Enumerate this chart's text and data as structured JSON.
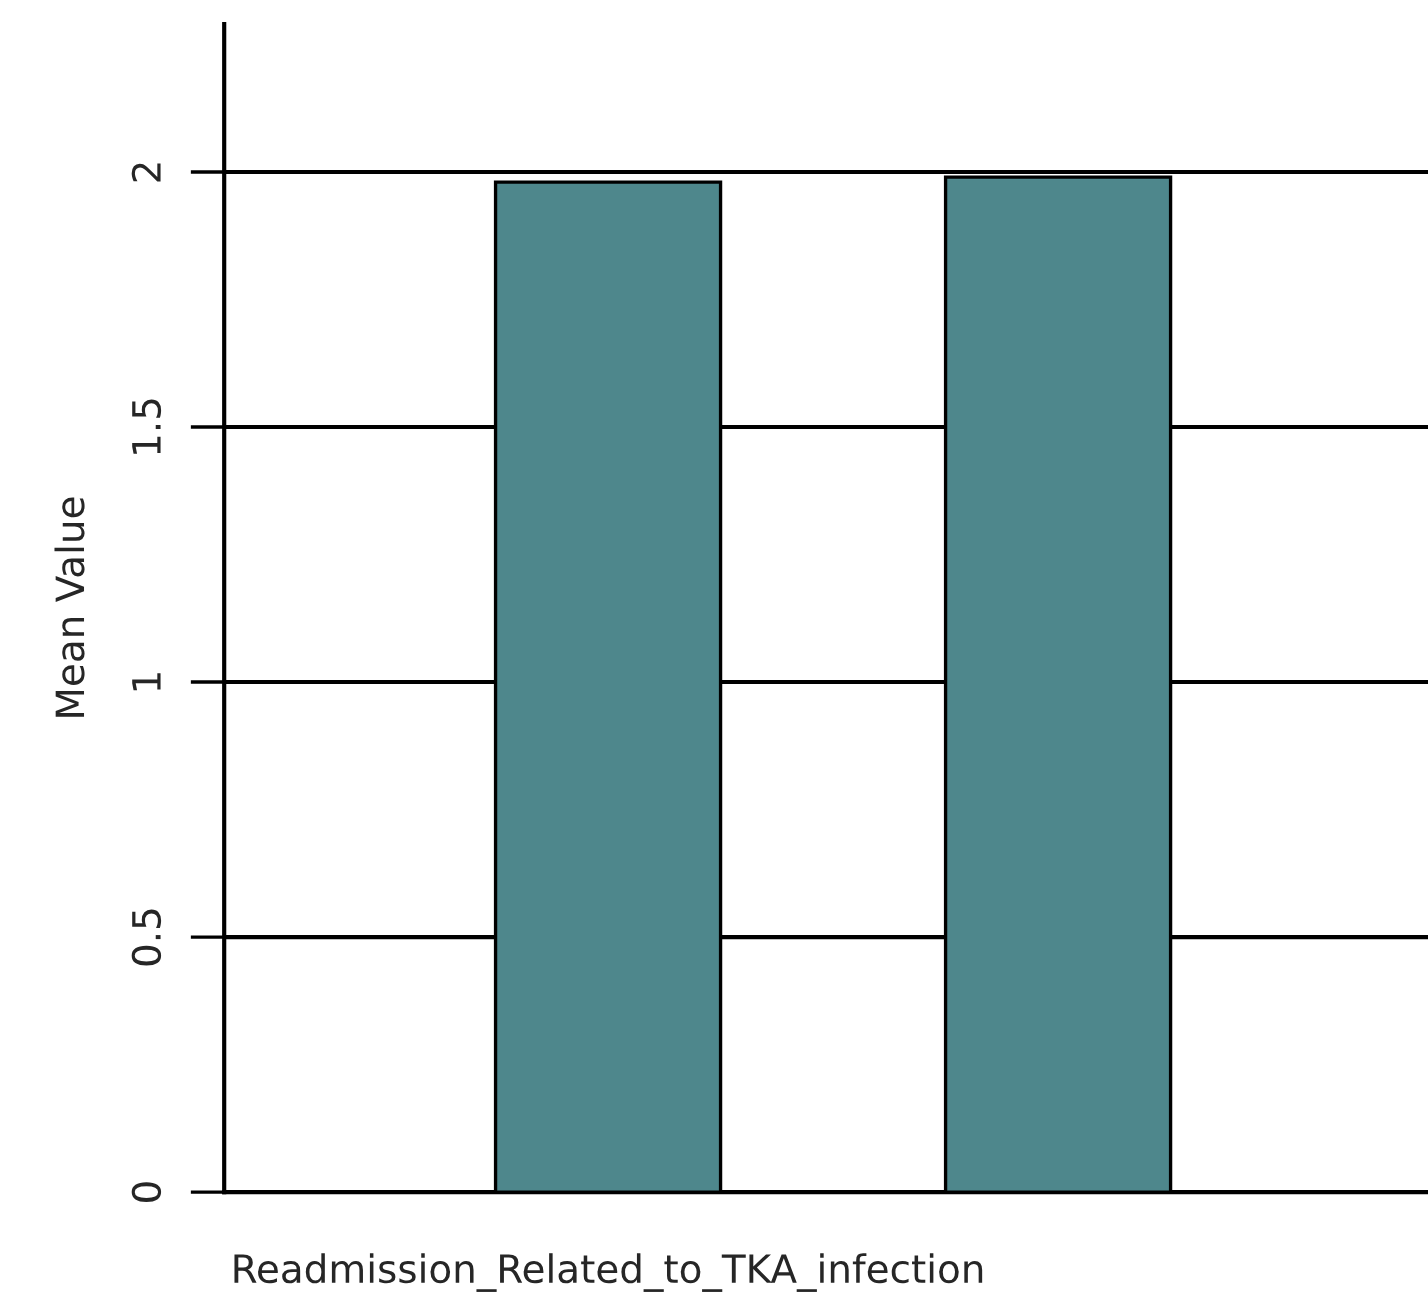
{
  "chart_data": {
    "type": "bar",
    "ylabel": "Mean Value",
    "categories": [
      "Readmission_Related_to_TKA_infection",
      null
    ],
    "values": [
      1.98,
      1.99
    ],
    "color": "#4e878c",
    "ylim": [
      0,
      2.29
    ],
    "yticks": [
      0,
      {
        "value": 0.5,
        "label": "0.5"
      },
      1,
      {
        "value": 1.5,
        "label": "1.5"
      },
      2
    ],
    "grid": "y"
  }
}
